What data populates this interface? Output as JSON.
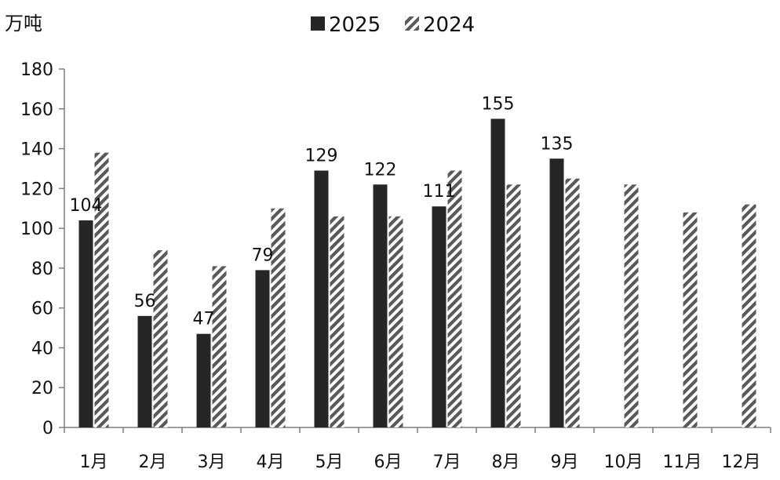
{
  "chart_data": {
    "type": "bar",
    "unit": "万吨",
    "categories": [
      "1月",
      "2月",
      "3月",
      "4月",
      "5月",
      "6月",
      "7月",
      "8月",
      "9月",
      "10月",
      "11月",
      "12月"
    ],
    "series": [
      {
        "name": "2025",
        "values": [
          104,
          56,
          47,
          79,
          129,
          122,
          111,
          155,
          135,
          null,
          null,
          null
        ],
        "color": "#262626",
        "pattern": "solid"
      },
      {
        "name": "2024",
        "values": [
          138,
          89,
          81,
          110,
          106,
          106,
          129,
          122,
          125,
          122,
          108,
          112
        ],
        "color": "#595959",
        "pattern": "diagonal-hatch"
      }
    ],
    "data_labels_series": "2025",
    "ylim": [
      0,
      180
    ],
    "yticks": [
      0,
      20,
      40,
      60,
      80,
      100,
      120,
      140,
      160,
      180
    ],
    "grid": false,
    "legend_position": "top-center"
  }
}
